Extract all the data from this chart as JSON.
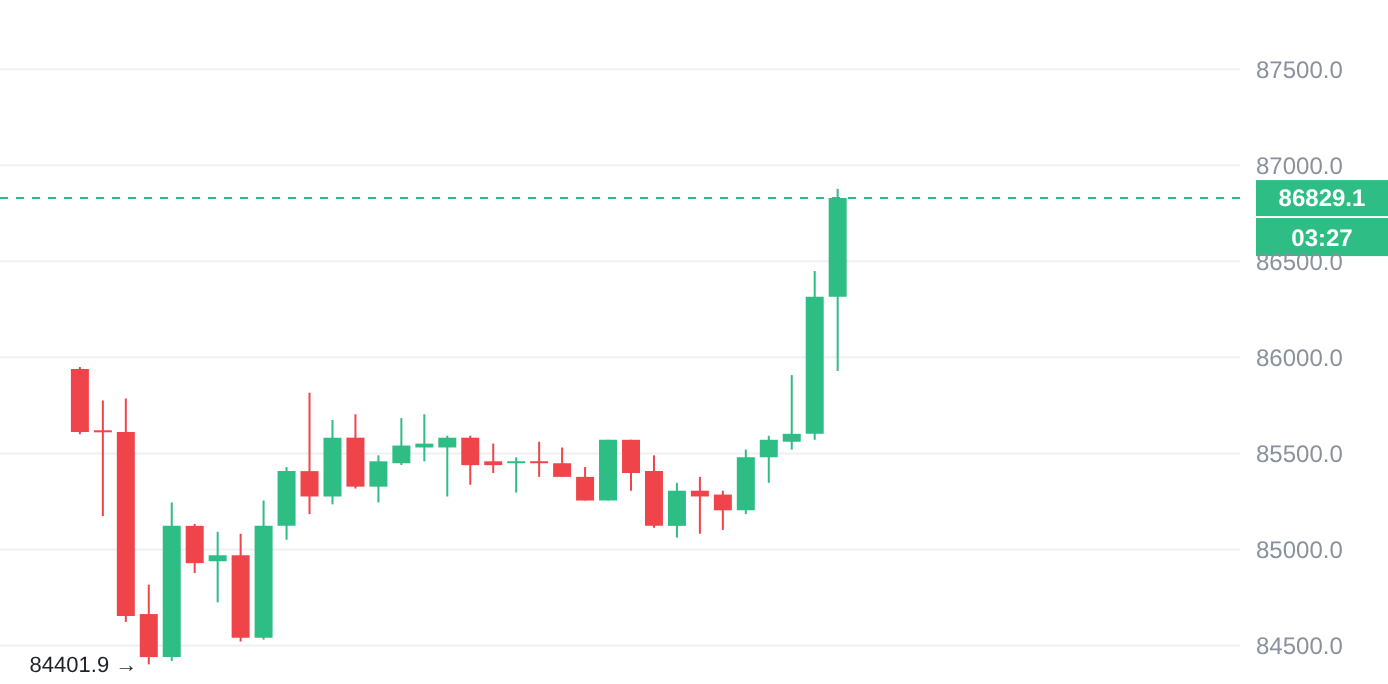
{
  "chart_data": {
    "type": "candlestick",
    "categories": [
      null,
      null,
      null,
      null,
      null,
      null,
      null,
      null,
      null,
      null,
      null,
      null,
      null,
      null,
      null,
      null,
      null,
      null,
      null,
      null,
      null,
      null,
      null,
      null,
      null,
      null,
      null,
      null,
      null,
      null,
      null,
      null,
      null,
      null,
      null,
      null,
      null,
      null,
      null,
      null,
      null,
      null,
      null,
      null,
      null,
      null,
      null,
      null,
      null,
      null,
      null,
      null,
      null,
      null
    ],
    "ohlc": [
      null,
      null,
      null,
      [
        85939,
        85950,
        85600,
        85612
      ],
      [
        85620,
        85776,
        85174,
        85610
      ],
      [
        85612,
        85786,
        84623,
        84654
      ],
      [
        84664,
        84817,
        84401.9,
        84440
      ],
      [
        84440,
        85245,
        84420,
        85123
      ],
      [
        85123,
        85133,
        84878,
        84929
      ],
      [
        84939,
        85092,
        84725,
        84970
      ],
      [
        84970,
        85082,
        84521,
        84541
      ],
      [
        84541,
        85255,
        84531,
        85123
      ],
      [
        85123,
        85429,
        85051,
        85408
      ],
      [
        85408,
        85816,
        85184,
        85276
      ],
      [
        85276,
        85674,
        85235,
        85582
      ],
      [
        85582,
        85704,
        85317,
        85327
      ],
      [
        85327,
        85490,
        85245,
        85459
      ],
      [
        85449,
        85684,
        85440,
        85541
      ],
      [
        85531,
        85704,
        85459,
        85551
      ],
      [
        85531,
        85592,
        85276,
        85582
      ],
      [
        85582,
        85592,
        85337,
        85439
      ],
      [
        85459,
        85551,
        85398,
        85439
      ],
      [
        85449,
        85480,
        85296,
        85459
      ],
      [
        85459,
        85561,
        85378,
        85449
      ],
      [
        85449,
        85531,
        85378,
        85378
      ],
      [
        85378,
        85429,
        85255,
        85255
      ],
      [
        85255,
        85571,
        85255,
        85571
      ],
      [
        85571,
        85571,
        85306,
        85398
      ],
      [
        85408,
        85490,
        85113,
        85123
      ],
      [
        85123,
        85347,
        85062,
        85306
      ],
      [
        85306,
        85378,
        85082,
        85276
      ],
      [
        85286,
        85306,
        85102,
        85204
      ],
      [
        85204,
        85520,
        85184,
        85480
      ],
      [
        85480,
        85592,
        85347,
        85571
      ],
      [
        85561,
        85908,
        85520,
        85602
      ],
      [
        85602,
        86449,
        85571,
        86316
      ],
      [
        86316,
        86877,
        85929,
        86829.1
      ],
      null,
      null,
      null,
      null,
      null,
      null,
      null,
      null,
      null,
      null,
      null,
      null,
      null,
      null,
      null,
      null,
      null
    ],
    "colors": [
      null,
      null,
      null,
      "#ef454a",
      "#ef454a",
      "#ef454a",
      "#ef454a",
      "#2ebd85",
      "#ef454a",
      "#2ebd85",
      "#ef454a",
      "#2ebd85",
      "#2ebd85",
      "#ef454a",
      "#2ebd85",
      "#ef454a",
      "#2ebd85",
      "#2ebd85",
      "#2ebd85",
      "#2ebd85",
      "#ef454a",
      "#ef454a",
      "#2ebd85",
      "#ef454a",
      "#ef454a",
      "#ef454a",
      "#2ebd85",
      "#ef454a",
      "#ef454a",
      "#2ebd85",
      "#ef454a",
      "#ef454a",
      "#2ebd85",
      "#2ebd85",
      "#2ebd85",
      "#2ebd85",
      "#2ebd85",
      null,
      null,
      null,
      null,
      null,
      null,
      null,
      null,
      null,
      null,
      null,
      null,
      null,
      null,
      null,
      null,
      null
    ],
    "ylim": [
      84300,
      87860
    ],
    "yticks": [
      {
        "value": 84500,
        "label": "84500.0"
      },
      {
        "value": 85000,
        "label": "85000.0"
      },
      {
        "value": 85500,
        "label": "85500.0"
      },
      {
        "value": 86000,
        "label": "86000.0"
      },
      {
        "value": 86500,
        "label": "86500.0"
      },
      {
        "value": 87000,
        "label": "87000.0"
      },
      {
        "value": 87500,
        "label": "87500.0"
      }
    ],
    "grid": "y",
    "ref_lines": [
      {
        "axis": "y",
        "value": 86829.1,
        "label": "86829.1",
        "color": "#2ebd85",
        "line_style": "dashed"
      }
    ],
    "annotations": [
      "84401.9 →",
      "03:27"
    ]
  }
}
